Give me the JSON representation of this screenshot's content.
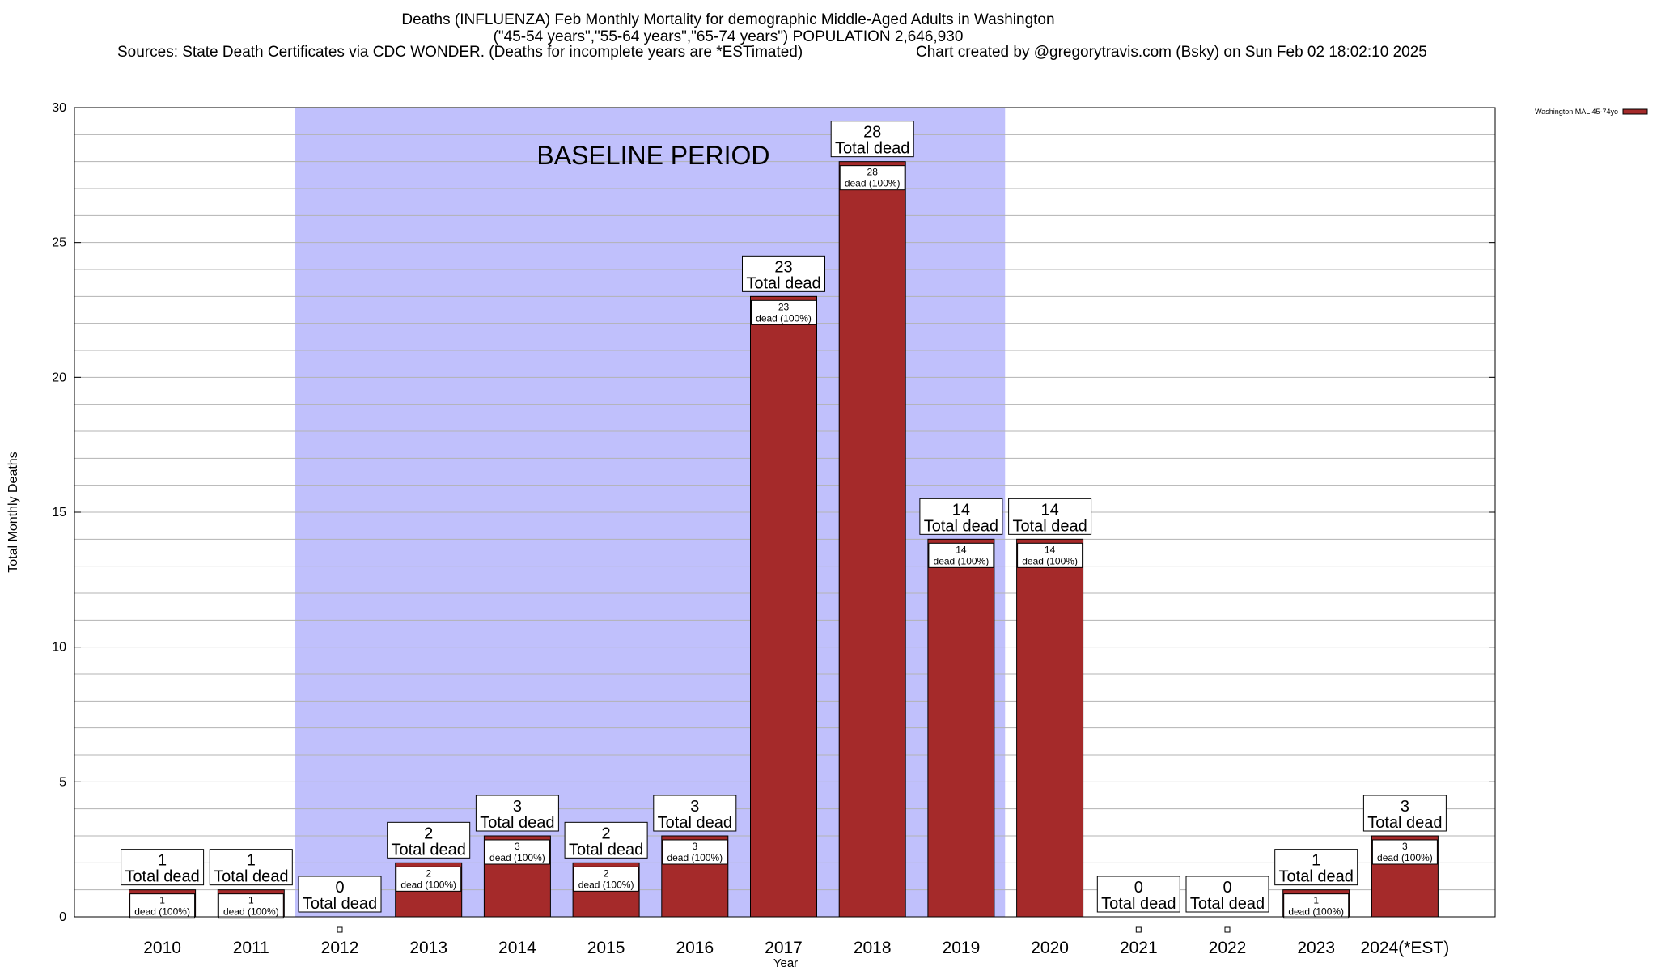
{
  "chart_data": {
    "type": "bar",
    "title": "Deaths (INFLUENZA) Feb Monthly Mortality for demographic Middle-Aged Adults in Washington",
    "subtitle": "(\"45-54 years\",\"55-64 years\",\"65-74 years\") POPULATION 2,646,930",
    "sources": "Sources: State Death Certificates via CDC WONDER. (Deaths for incomplete years are *ESTimated)",
    "credit": "Chart created by @gregorytravis.com (Bsky) on Sun Feb 02 18:02:10 2025",
    "xlabel": "Year",
    "ylabel": "Total Monthly Deaths",
    "ylim": [
      0,
      30
    ],
    "yticks": [
      0,
      5,
      10,
      15,
      20,
      25,
      30
    ],
    "grid": true,
    "categories": [
      "2010",
      "2011",
      "2012",
      "2013",
      "2014",
      "2015",
      "2016",
      "2017",
      "2018",
      "2019",
      "2020",
      "2021",
      "2022",
      "2023",
      "2024(*EST)"
    ],
    "series": [
      {
        "name": "Washington MAL 45-74yo",
        "color": "#a52a2a",
        "values": [
          1,
          1,
          0,
          2,
          3,
          2,
          3,
          23,
          28,
          14,
          14,
          0,
          0,
          1,
          3
        ]
      }
    ],
    "total_label": "Total dead",
    "inner_label": "dead (100%)",
    "baseline": {
      "label": "BASELINE PERIOD",
      "from": "2012",
      "to": "2019",
      "color": "#c0c0fc"
    },
    "legend_position": "top-right"
  }
}
